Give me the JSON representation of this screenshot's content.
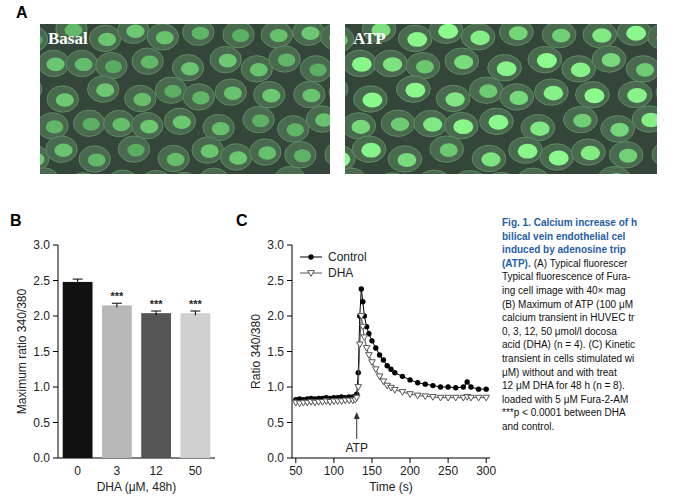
{
  "panel_a": {
    "label": "A",
    "images": [
      {
        "label": "Basal"
      },
      {
        "label": "ATP"
      }
    ]
  },
  "chart_data": [
    {
      "label": "B",
      "type": "bar",
      "categories": [
        "0",
        "3",
        "12",
        "50"
      ],
      "values": [
        2.48,
        2.15,
        2.04,
        2.04
      ],
      "errors": [
        0.04,
        0.03,
        0.03,
        0.03
      ],
      "significance": [
        null,
        "***",
        "***",
        "***"
      ],
      "colors": [
        "#111111",
        "#b8b8b8",
        "#555555",
        "#d0d0d0"
      ],
      "x_label": "DHA (μM, 48h)",
      "y_label": "Maximum ratio 340/380",
      "ylim": [
        0,
        3
      ],
      "yticks": [
        {
          "value": 0,
          "label": "0.0"
        },
        0.5,
        {
          "value": 1,
          "label": "1.0"
        },
        1.5,
        {
          "value": 2,
          "label": "2.0"
        },
        2.5,
        {
          "value": 3,
          "label": "3.0"
        }
      ],
      "grid": false
    },
    {
      "label": "C",
      "type": "line",
      "x": [
        50,
        55,
        60,
        65,
        70,
        75,
        80,
        85,
        90,
        95,
        100,
        105,
        110,
        115,
        120,
        125,
        128,
        130,
        132,
        134,
        136,
        138,
        140,
        143,
        146,
        150,
        155,
        160,
        165,
        170,
        175,
        180,
        190,
        200,
        210,
        220,
        230,
        240,
        250,
        260,
        270,
        275,
        280,
        290,
        300
      ],
      "series": [
        {
          "name": "Control",
          "color": "#000000",
          "marker": "circle",
          "values": [
            0.82,
            0.83,
            0.82,
            0.83,
            0.84,
            0.83,
            0.84,
            0.84,
            0.85,
            0.84,
            0.85,
            0.85,
            0.86,
            0.85,
            0.86,
            0.86,
            0.87,
            0.9,
            1.2,
            2.0,
            2.38,
            2.2,
            2.0,
            1.85,
            1.75,
            1.65,
            1.55,
            1.45,
            1.38,
            1.3,
            1.25,
            1.2,
            1.15,
            1.1,
            1.06,
            1.04,
            1.02,
            1.0,
            1.0,
            0.99,
            1.0,
            1.07,
            1.0,
            0.97,
            0.97
          ]
        },
        {
          "name": "DHA",
          "color": "#555555",
          "marker": "triangle-down",
          "values": [
            0.78,
            0.77,
            0.78,
            0.78,
            0.79,
            0.78,
            0.79,
            0.79,
            0.8,
            0.79,
            0.8,
            0.8,
            0.8,
            0.81,
            0.81,
            0.81,
            0.82,
            0.85,
            1.0,
            1.6,
            2.0,
            1.85,
            1.7,
            1.55,
            1.45,
            1.35,
            1.25,
            1.15,
            1.08,
            1.02,
            0.99,
            0.96,
            0.93,
            0.9,
            0.88,
            0.87,
            0.86,
            0.85,
            0.85,
            0.85,
            0.85,
            0.86,
            0.85,
            0.85,
            0.85
          ]
        }
      ],
      "x_label": "Time (s)",
      "y_label": "Ratio 340/380",
      "xlim": [
        45,
        305
      ],
      "xticks": [
        50,
        100,
        150,
        200,
        250,
        300
      ],
      "ylim": [
        0,
        3
      ],
      "yticks": [
        {
          "value": 0,
          "label": "0.0"
        },
        0.5,
        {
          "value": 1,
          "label": "1.0"
        },
        1.5,
        {
          "value": 2,
          "label": "2.0"
        },
        2.5,
        {
          "value": 3,
          "label": "3.0"
        }
      ],
      "legend": "upper left",
      "grid": false,
      "annotations": [
        {
          "text": "ATP",
          "x": 130
        }
      ]
    }
  ],
  "caption": {
    "title": [
      "Fig. 1. Calcium increase of h",
      "bilical vein endothelial cel",
      "induced by adenosine trip",
      "(ATP)."
    ],
    "body": [
      "(A) Typical fluorescer",
      "Typical fluorescence of Fura-",
      "ing cell image with 40× mag",
      "(B) Maximum of ATP (100 μM",
      "calcium transient in HUVEC tr",
      "0, 3, 12, 50 μmol/l docosa",
      "acid (DHA) (n = 4). (C) Kinetic",
      "transient in cells stimulated wi",
      "μM) without and with treat",
      "12 μM DHA for 48 h (n = 8).",
      "loaded with 5 μM Fura-2-AM",
      "***p < 0.0001 between DHA",
      "and control."
    ]
  }
}
